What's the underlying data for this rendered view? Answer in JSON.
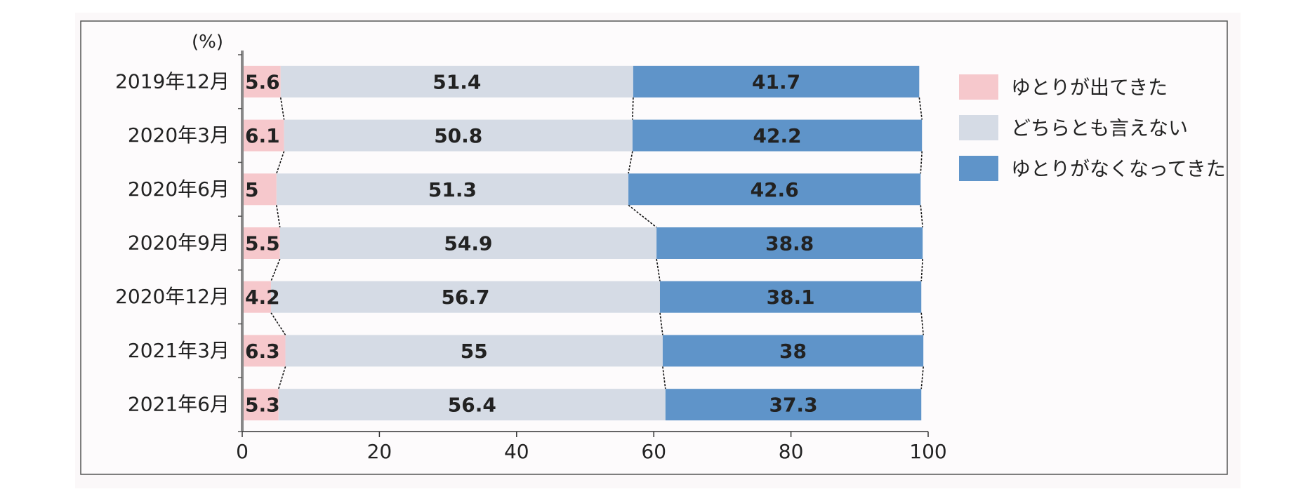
{
  "chart_data": {
    "type": "bar",
    "orientation": "horizontal",
    "stacked": true,
    "percent_label": "(%)",
    "categories": [
      "2019年12月",
      "2020年3月",
      "2020年6月",
      "2020年9月",
      "2020年12月",
      "2021年3月",
      "2021年6月"
    ],
    "series": [
      {
        "name": "ゆとりが出てきた",
        "color": "#f6c8cc",
        "values": [
          5.6,
          6.1,
          5,
          5.5,
          4.2,
          6.3,
          5.3
        ]
      },
      {
        "name": "どちらとも言えない",
        "color": "#d5dbe5",
        "values": [
          51.4,
          50.8,
          51.3,
          54.9,
          56.7,
          55,
          56.4
        ]
      },
      {
        "name": "ゆとりがなくなってきた",
        "color": "#5f94c9",
        "values": [
          41.7,
          42.2,
          42.6,
          38.8,
          38.1,
          38,
          37.3
        ]
      }
    ],
    "xlim": [
      0,
      100
    ],
    "xticks": [
      0,
      20,
      40,
      60,
      80,
      100
    ],
    "legend_position": "right",
    "grid": false,
    "connector_lines": true
  }
}
